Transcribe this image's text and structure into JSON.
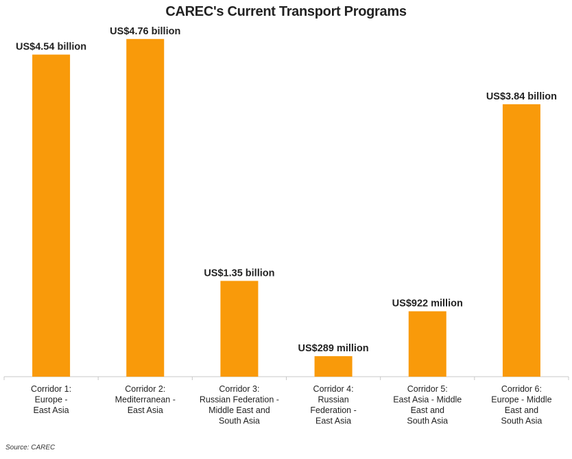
{
  "chart_data": {
    "type": "bar",
    "title": "CAREC's Current Transport Programs",
    "xlabel": "",
    "ylabel": "",
    "ylim": [
      0,
      5.0
    ],
    "unit": "US$ billion",
    "categories": [
      [
        "Corridor 1:",
        "Europe -",
        "East Asia"
      ],
      [
        "Corridor 2:",
        "Mediterranean -",
        "East Asia"
      ],
      [
        "Corridor 3:",
        "Russian Federation -",
        "Middle East and",
        "South Asia"
      ],
      [
        "Corridor 4:",
        "Russian",
        "Federation -",
        "East Asia"
      ],
      [
        "Corridor 5:",
        "East Asia - Middle",
        "East and",
        "South Asia"
      ],
      [
        "Corridor 6:",
        "Europe - Middle",
        "East and",
        "South Asia"
      ]
    ],
    "values": [
      4.54,
      4.76,
      1.35,
      0.289,
      0.922,
      3.84
    ],
    "data_labels": [
      "US$4.54 billion",
      "US$4.76 billion",
      "US$1.35 billion",
      "US$289 million",
      "US$922 million",
      "US$3.84 billion"
    ],
    "bar_color": "#f99a0a",
    "grid": false,
    "legend": "none"
  },
  "footer": {
    "source": "Source: CAREC"
  }
}
